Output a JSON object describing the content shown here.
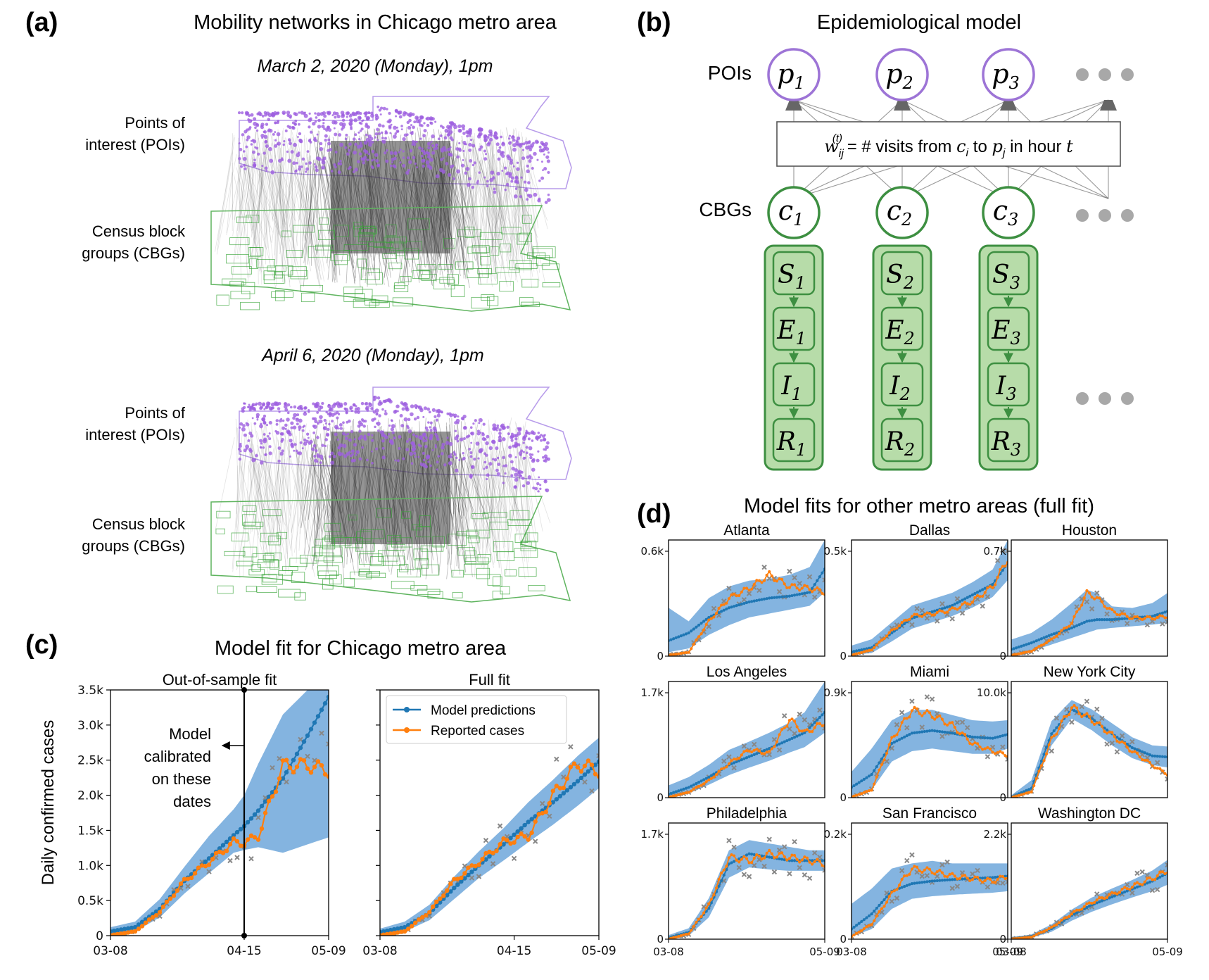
{
  "panel_a": {
    "label": "(a)",
    "title": "Mobility networks in Chicago metro area",
    "net1": {
      "caption": "March 2, 2020 (Monday), 1pm",
      "poi_label_1": "Points of",
      "poi_label_2": "interest (POIs)",
      "cbg_label_1": "Census block",
      "cbg_label_2": "groups (CBGs)"
    },
    "net2": {
      "caption": "April 6, 2020 (Monday), 1pm",
      "poi_label_1": "Points of",
      "poi_label_2": "interest (POIs)",
      "cbg_label_1": "Census block",
      "cbg_label_2": "groups (CBGs)"
    }
  },
  "panel_b": {
    "label": "(b)",
    "title": "Epidemiological model",
    "poi_row_label": "POIs",
    "cbg_row_label": "CBGs",
    "pois": [
      "p",
      "p",
      "p"
    ],
    "cbgs": [
      "c",
      "c",
      "c"
    ],
    "indices": [
      "1",
      "2",
      "3"
    ],
    "states": [
      "S",
      "E",
      "I",
      "R"
    ],
    "edge_box": {
      "w": "w",
      "sub": "ij",
      "sup": "(t)",
      "text1": " = # visits from ",
      "c": "c",
      "c_sub": "i",
      "text2": " to ",
      "p": "p",
      "p_sub": "j",
      "text3": " in hour ",
      "t": "t"
    },
    "colors": {
      "poi": "#9d74d6",
      "cbg": "#3d8f41",
      "cbg_fill": "#b7dca9"
    }
  },
  "panel_c": {
    "label": "(c)",
    "title": "Model fit for Chicago metro area",
    "ylabel": "Daily confirmed cases",
    "annotation": [
      "Model",
      "calibrated",
      "on these",
      "dates"
    ],
    "legend": [
      "Model predictions",
      "Reported cases"
    ]
  },
  "panel_d": {
    "label": "(d)",
    "title": "Model fits for other metro areas (full fit)"
  },
  "colors": {
    "model": "#1f77b4",
    "band": "#5b9bd5",
    "reported": "#ff7f0e",
    "scatter": "#888888"
  },
  "chart_data": [
    {
      "type": "line",
      "title": "Out-of-sample fit",
      "xlabel": "",
      "ylabel": "Daily confirmed cases",
      "x_ticks": [
        "03-08",
        "04-15",
        "05-09"
      ],
      "y_ticks": [
        "0",
        "0.5k",
        "1.0k",
        "1.5k",
        "2.0k",
        "2.5k",
        "3.0k",
        "3.5k"
      ],
      "ylim": [
        0,
        3500
      ],
      "calibration_cutoff": "04-15",
      "x_days": [
        0,
        7,
        14,
        21,
        28,
        35,
        38,
        42,
        49,
        56,
        62
      ],
      "series": [
        {
          "name": "Model predictions",
          "values": [
            60,
            120,
            380,
            780,
            1100,
            1430,
            1560,
            1780,
            2240,
            2850,
            3400
          ]
        },
        {
          "name": "Reported cases",
          "values": [
            5,
            60,
            340,
            780,
            1050,
            1330,
            1320,
            1420,
            2420,
            2430,
            2350
          ]
        }
      ],
      "band_low": [
        10,
        60,
        260,
        600,
        890,
        1180,
        1220,
        1260,
        1180,
        1300,
        1400
      ],
      "band_high": [
        120,
        200,
        520,
        980,
        1420,
        1800,
        2000,
        2450,
        3150,
        3500,
        3500
      ]
    },
    {
      "type": "line",
      "title": "Full fit",
      "x_ticks": [
        "03-08",
        "04-15",
        "05-09"
      ],
      "ylim": [
        0,
        3500
      ],
      "x_days": [
        0,
        7,
        14,
        21,
        28,
        35,
        42,
        49,
        56,
        62
      ],
      "series": [
        {
          "name": "Model predictions",
          "values": [
            50,
            120,
            320,
            680,
            1000,
            1300,
            1620,
            1900,
            2200,
            2480
          ]
        },
        {
          "name": "Reported cases",
          "values": [
            5,
            60,
            340,
            780,
            1050,
            1330,
            1420,
            2000,
            2450,
            2350
          ]
        }
      ],
      "band_low": [
        10,
        60,
        220,
        520,
        820,
        1070,
        1330,
        1580,
        1850,
        2100
      ],
      "band_high": [
        100,
        200,
        440,
        840,
        1200,
        1530,
        1900,
        2220,
        2560,
        2820
      ]
    },
    {
      "type": "line",
      "title": "Atlanta",
      "y_ticks": [
        "0",
        "0.6k"
      ],
      "ylim": [
        0,
        600
      ],
      "x_days": [
        0,
        8,
        16,
        24,
        32,
        40,
        48,
        56,
        62
      ],
      "series": [
        {
          "name": "Model predictions",
          "values": [
            80,
            120,
            200,
            250,
            280,
            300,
            310,
            330,
            450
          ]
        },
        {
          "name": "Reported cases",
          "values": [
            5,
            20,
            180,
            300,
            350,
            420,
            360,
            350,
            330
          ]
        }
      ],
      "band_low": [
        20,
        40,
        110,
        160,
        200,
        220,
        240,
        260,
        330
      ],
      "band_high": [
        250,
        180,
        300,
        360,
        390,
        400,
        420,
        460,
        600
      ]
    },
    {
      "type": "line",
      "title": "Dallas",
      "y_ticks": [
        "0",
        "0.5k"
      ],
      "ylim": [
        0,
        550
      ],
      "x_days": [
        0,
        8,
        16,
        24,
        32,
        40,
        48,
        56,
        62
      ],
      "series": [
        {
          "name": "Model predictions",
          "values": [
            20,
            40,
            110,
            180,
            210,
            240,
            290,
            340,
            440
          ]
        },
        {
          "name": "Reported cases",
          "values": [
            5,
            30,
            120,
            190,
            200,
            220,
            260,
            330,
            460
          ]
        }
      ],
      "band_low": [
        5,
        15,
        70,
        130,
        160,
        190,
        230,
        280,
        360
      ],
      "band_high": [
        50,
        80,
        160,
        240,
        270,
        300,
        350,
        410,
        550
      ]
    },
    {
      "type": "line",
      "title": "Houston",
      "y_ticks": [
        "0",
        "0.7k"
      ],
      "ylim": [
        0,
        700
      ],
      "x_days": [
        0,
        8,
        16,
        24,
        30,
        34,
        40,
        48,
        56,
        62
      ],
      "series": [
        {
          "name": "Model predictions",
          "values": [
            40,
            80,
            130,
            170,
            210,
            220,
            220,
            230,
            240,
            270
          ]
        },
        {
          "name": "Reported cases",
          "values": [
            5,
            30,
            100,
            200,
            380,
            350,
            270,
            230,
            230,
            240
          ]
        }
      ],
      "band_low": [
        10,
        30,
        70,
        110,
        140,
        160,
        170,
        180,
        190,
        200
      ],
      "band_high": [
        100,
        140,
        220,
        320,
        400,
        380,
        300,
        290,
        320,
        380
      ]
    },
    {
      "type": "line",
      "title": "Los Angeles",
      "y_ticks": [
        "0",
        "1.7k"
      ],
      "ylim": [
        0,
        1700
      ],
      "x_days": [
        0,
        8,
        16,
        24,
        32,
        40,
        48,
        54,
        62
      ],
      "series": [
        {
          "name": "Model predictions",
          "values": [
            50,
            150,
            300,
            480,
            600,
            720,
            850,
            950,
            1250
          ]
        },
        {
          "name": "Reported cases",
          "values": [
            5,
            80,
            250,
            500,
            700,
            650,
            1150,
            950,
            1100
          ]
        }
      ],
      "band_low": [
        10,
        60,
        190,
        330,
        440,
        540,
        660,
        740,
        950
      ],
      "band_high": [
        180,
        300,
        480,
        700,
        820,
        950,
        1100,
        1250,
        1700
      ]
    },
    {
      "type": "line",
      "title": "Miami",
      "y_ticks": [
        "0",
        "0.9k"
      ],
      "ylim": [
        0,
        900
      ],
      "x_days": [
        0,
        8,
        16,
        24,
        32,
        40,
        48,
        56,
        62
      ],
      "series": [
        {
          "name": "Model predictions",
          "values": [
            80,
            180,
            420,
            500,
            520,
            500,
            470,
            460,
            490
          ]
        },
        {
          "name": "Reported cases",
          "values": [
            5,
            60,
            450,
            680,
            640,
            560,
            420,
            360,
            330
          ]
        }
      ],
      "band_low": [
        20,
        60,
        280,
        360,
        380,
        360,
        340,
        340,
        380
      ],
      "band_high": [
        200,
        380,
        600,
        680,
        680,
        640,
        600,
        590,
        600
      ]
    },
    {
      "type": "line",
      "title": "New York City",
      "y_ticks": [
        "0",
        "10.0k"
      ],
      "ylim": [
        0,
        10000
      ],
      "x_days": [
        0,
        8,
        16,
        24,
        32,
        40,
        48,
        56,
        62
      ],
      "series": [
        {
          "name": "Model predictions",
          "values": [
            50,
            800,
            5500,
            7600,
            6800,
            5500,
            4300,
            3600,
            3500
          ]
        },
        {
          "name": "Reported cases",
          "values": [
            20,
            500,
            5000,
            7800,
            6700,
            5400,
            4000,
            2800,
            2000
          ]
        }
      ],
      "band_low": [
        10,
        400,
        4500,
        6800,
        5800,
        4500,
        3400,
        2800,
        2600
      ],
      "band_high": [
        200,
        1500,
        6600,
        8400,
        7600,
        6400,
        5200,
        4500,
        4400
      ]
    },
    {
      "type": "line",
      "title": "Philadelphia",
      "y_ticks": [
        "0",
        "1.7k"
      ],
      "ylim": [
        0,
        1700
      ],
      "x_days": [
        0,
        8,
        16,
        24,
        32,
        40,
        48,
        56,
        62
      ],
      "series": [
        {
          "name": "Model predictions",
          "values": [
            20,
            100,
            450,
            1100,
            1250,
            1200,
            1150,
            1150,
            1150
          ]
        },
        {
          "name": "Reported cases",
          "values": [
            5,
            80,
            500,
            1200,
            1150,
            1250,
            1200,
            1150,
            1100
          ]
        }
      ],
      "band_low": [
        5,
        50,
        320,
        900,
        1050,
        1020,
        1000,
        1000,
        1000
      ],
      "band_high": [
        60,
        160,
        600,
        1300,
        1450,
        1400,
        1350,
        1300,
        1300
      ]
    },
    {
      "type": "line",
      "title": "San Francisco",
      "y_ticks": [
        "0",
        "0.2k"
      ],
      "ylim": [
        0,
        230
      ],
      "x_days": [
        0,
        8,
        16,
        24,
        32,
        40,
        48,
        56,
        62
      ],
      "series": [
        {
          "name": "Model predictions",
          "values": [
            20,
            50,
            95,
            110,
            115,
            118,
            120,
            122,
            125
          ]
        },
        {
          "name": "Reported cases",
          "values": [
            5,
            30,
            90,
            140,
            135,
            125,
            120,
            115,
            125
          ]
        }
      ],
      "band_low": [
        5,
        20,
        60,
        80,
        85,
        88,
        90,
        92,
        95
      ],
      "band_high": [
        70,
        100,
        140,
        150,
        155,
        150,
        150,
        150,
        150
      ]
    },
    {
      "type": "line",
      "title": "Washington DC",
      "y_ticks": [
        "0",
        "2.2k"
      ],
      "ylim": [
        0,
        2200
      ],
      "x_days": [
        0,
        8,
        16,
        24,
        32,
        40,
        48,
        56,
        62
      ],
      "series": [
        {
          "name": "Model predictions",
          "values": [
            10,
            50,
            200,
            450,
            650,
            800,
            950,
            1100,
            1250
          ]
        },
        {
          "name": "Reported cases",
          "values": [
            5,
            40,
            220,
            480,
            700,
            850,
            1000,
            1150,
            1300
          ]
        }
      ],
      "band_low": [
        2,
        25,
        140,
        350,
        520,
        660,
        790,
        910,
        1030
      ],
      "band_high": [
        30,
        90,
        280,
        560,
        790,
        960,
        1120,
        1300,
        1500
      ]
    }
  ]
}
